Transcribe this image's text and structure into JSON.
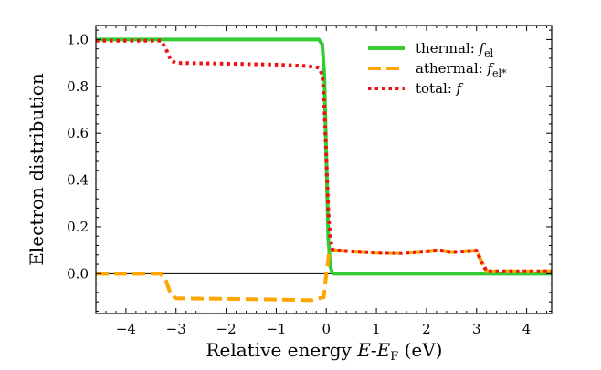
{
  "chart_data": {
    "type": "line",
    "title": "",
    "xlabel": "Relative energy E-E_F (eV)",
    "ylabel": "Electron distribution",
    "xlabel_parts": {
      "prefix": "Relative energy ",
      "e": "E",
      "dash": "-",
      "ef": "E",
      "ef_sub": "F",
      "suffix": " (eV)"
    },
    "xlim": [
      -4.6,
      4.5
    ],
    "ylim": [
      -0.17,
      1.06
    ],
    "xticks": [
      -4,
      -3,
      -2,
      -1,
      0,
      1,
      2,
      3,
      4
    ],
    "xtick_labels": [
      "−4",
      "−3",
      "−2",
      "−1",
      "0",
      "1",
      "2",
      "3",
      "4"
    ],
    "yticks": [
      0.0,
      0.2,
      0.4,
      0.6,
      0.8,
      1.0
    ],
    "ytick_labels": [
      "0.0",
      "0.2",
      "0.4",
      "0.6",
      "0.8",
      "1.0"
    ],
    "zero_line": 0,
    "legend_position": "top-right",
    "series": [
      {
        "name": "thermal: f_el",
        "legend_main": "thermal: ",
        "legend_f": "f",
        "legend_sub": "el",
        "color": "#33cc33",
        "style": "solid",
        "x": [
          -4.6,
          -0.15,
          -0.08,
          -0.04,
          0.0,
          0.04,
          0.08,
          0.12,
          0.15,
          4.5
        ],
        "y": [
          1.0,
          1.0,
          0.98,
          0.85,
          0.5,
          0.15,
          0.03,
          0.005,
          0.0,
          0.0
        ]
      },
      {
        "name": "athermal: f_el*",
        "legend_main": "athermal: ",
        "legend_f": "f",
        "legend_sub": "el*",
        "color": "#ffa500",
        "style": "dashed",
        "x": [
          -4.6,
          -3.3,
          -3.2,
          -3.1,
          -3.0,
          -2.0,
          -1.0,
          -0.3,
          -0.05,
          0.0,
          0.05,
          0.15,
          0.5,
          1.0,
          1.5,
          2.0,
          2.25,
          2.5,
          3.0,
          3.1,
          3.2,
          4.5
        ],
        "y": [
          0.0,
          0.0,
          -0.03,
          -0.09,
          -0.105,
          -0.107,
          -0.11,
          -0.113,
          -0.1,
          0.0,
          0.08,
          0.1,
          0.095,
          0.09,
          0.088,
          0.095,
          0.1,
          0.092,
          0.098,
          0.05,
          0.01,
          0.01
        ]
      },
      {
        "name": "total: f",
        "legend_main": "total: ",
        "legend_f": "f",
        "legend_sub": "",
        "color": "#ee1111",
        "style": "dotted",
        "x": [
          -4.6,
          -3.3,
          -3.2,
          -3.1,
          -3.0,
          -2.0,
          -1.0,
          -0.4,
          -0.15,
          -0.08,
          -0.04,
          0.0,
          0.04,
          0.08,
          0.12,
          0.15,
          0.5,
          1.0,
          1.5,
          2.0,
          2.25,
          2.5,
          3.0,
          3.1,
          3.2,
          4.5
        ],
        "y": [
          0.995,
          0.995,
          0.96,
          0.91,
          0.9,
          0.897,
          0.893,
          0.887,
          0.88,
          0.85,
          0.72,
          0.5,
          0.27,
          0.15,
          0.105,
          0.1,
          0.095,
          0.09,
          0.088,
          0.095,
          0.1,
          0.092,
          0.098,
          0.05,
          0.01,
          0.01
        ]
      }
    ]
  }
}
